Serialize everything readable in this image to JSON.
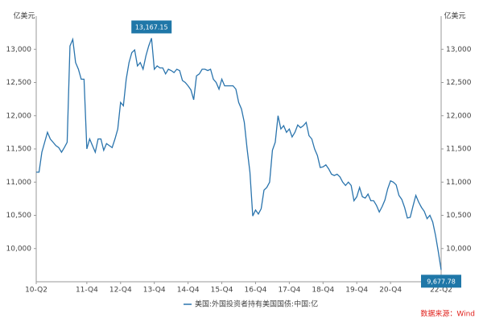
{
  "chart_data": {
    "type": "line",
    "y_label": "亿美元",
    "y2_label": "亿美元",
    "categories": [
      "10-Q2",
      null,
      null,
      null,
      null,
      null,
      null,
      null,
      null,
      null,
      null,
      null,
      null,
      null,
      null,
      null,
      null,
      null,
      "11-Q4",
      null,
      null,
      null,
      null,
      null,
      null,
      null,
      null,
      null,
      null,
      null,
      "12-Q4",
      null,
      null,
      null,
      null,
      null,
      null,
      null,
      null,
      null,
      null,
      null,
      "13-Q4",
      null,
      null,
      null,
      null,
      null,
      null,
      null,
      null,
      null,
      null,
      null,
      "14-Q4",
      null,
      null,
      null,
      null,
      null,
      null,
      null,
      null,
      null,
      null,
      null,
      "15-Q4",
      null,
      null,
      null,
      null,
      null,
      null,
      null,
      null,
      null,
      null,
      null,
      "16-Q4",
      null,
      null,
      null,
      null,
      null,
      null,
      null,
      null,
      null,
      null,
      null,
      "17-Q4",
      null,
      null,
      null,
      null,
      null,
      null,
      null,
      null,
      null,
      null,
      null,
      "18-Q4",
      null,
      null,
      null,
      null,
      null,
      null,
      null,
      null,
      null,
      null,
      null,
      "19-Q4",
      null,
      null,
      null,
      null,
      null,
      null,
      null,
      null,
      null,
      null,
      null,
      "20-Q4",
      null,
      null,
      null,
      null,
      null,
      null,
      null,
      null,
      null,
      null,
      null,
      null,
      null,
      null,
      null,
      null,
      null,
      "22-Q2"
    ],
    "series": [
      {
        "name": "美国:外国投资者持有美国国债:中国:亿",
        "color": "#2a74ad",
        "values": [
          11150,
          11150,
          11450,
          11600,
          11750,
          11650,
          11600,
          11550,
          11520,
          11450,
          11520,
          11600,
          13050,
          13150,
          12800,
          12700,
          12550,
          12550,
          11500,
          11650,
          11550,
          11450,
          11650,
          11650,
          11480,
          11580,
          11550,
          11520,
          11650,
          11800,
          12200,
          12150,
          12550,
          12800,
          12950,
          12990,
          12750,
          12800,
          12700,
          12900,
          13050,
          13167.15,
          12700,
          12750,
          12720,
          12720,
          12630,
          12700,
          12680,
          12650,
          12700,
          12680,
          12530,
          12500,
          12450,
          12390,
          12240,
          12600,
          12630,
          12700,
          12700,
          12680,
          12700,
          12550,
          12500,
          12400,
          12550,
          12450,
          12450,
          12450,
          12450,
          12400,
          12200,
          12100,
          11900,
          11500,
          11150,
          10490,
          10580,
          10520,
          10600,
          10880,
          10920,
          11000,
          11480,
          11600,
          12000,
          11800,
          11850,
          11750,
          11800,
          11680,
          11750,
          11860,
          11820,
          11850,
          11900,
          11700,
          11650,
          11500,
          11400,
          11220,
          11230,
          11260,
          11200,
          11120,
          11100,
          11120,
          11080,
          11000,
          10950,
          11000,
          10950,
          10720,
          10780,
          10920,
          10780,
          10760,
          10820,
          10720,
          10720,
          10650,
          10550,
          10630,
          10730,
          10900,
          11020,
          11000,
          10960,
          10800,
          10740,
          10620,
          10460,
          10470,
          10640,
          10800,
          10700,
          10620,
          10560,
          10450,
          10500,
          10400,
          10200,
          9950,
          9677.78
        ],
        "value_labels": [
          null,
          null,
          null,
          null,
          null,
          null,
          null,
          null,
          null,
          null,
          null,
          null,
          null,
          null,
          null,
          null,
          null,
          null,
          null,
          null,
          null,
          null,
          null,
          null,
          null,
          null,
          null,
          null,
          null,
          null,
          null,
          null,
          null,
          null,
          null,
          null,
          null,
          null,
          null,
          null,
          null,
          "13,167.15",
          null,
          null,
          null,
          null,
          null,
          null,
          null,
          null,
          null,
          null,
          null,
          null,
          null,
          null,
          null,
          null,
          null,
          null,
          null,
          null,
          null,
          null,
          null,
          null,
          null,
          null,
          null,
          null,
          null,
          null,
          null,
          null,
          null,
          null,
          null,
          null,
          null,
          null,
          null,
          null,
          null,
          null,
          null,
          null,
          null,
          null,
          null,
          null,
          null,
          null,
          null,
          null,
          null,
          null,
          null,
          null,
          null,
          null,
          null,
          null,
          null,
          null,
          null,
          null,
          null,
          null,
          null,
          null,
          null,
          null,
          null,
          null,
          null,
          null,
          null,
          null,
          null,
          null,
          null,
          null,
          null,
          null,
          null,
          null,
          null,
          null,
          null,
          null,
          null,
          null,
          null,
          null,
          null,
          null,
          null,
          null,
          null,
          null,
          null,
          null,
          null,
          null,
          "9,677.78"
        ],
        "label_color": "#1f77a8"
      }
    ],
    "ylim": [
      9500,
      13500
    ],
    "yticks": [
      {
        "value": 10000,
        "label": "10,000"
      },
      {
        "value": 10500,
        "label": "10,500"
      },
      {
        "value": 11000,
        "label": "11,000"
      },
      {
        "value": 11500,
        "label": "11,500"
      },
      {
        "value": 12000,
        "label": "12,000"
      },
      {
        "value": 12500,
        "label": "12,500"
      },
      {
        "value": 13000,
        "label": "13,000"
      }
    ],
    "y2lim": [
      9500,
      13500
    ],
    "y2ticks": [
      {
        "value": 10000,
        "label": "10,000"
      },
      {
        "value": 10500,
        "label": "10,500"
      },
      {
        "value": 11000,
        "label": "11,000"
      },
      {
        "value": 11500,
        "label": "11,500"
      },
      {
        "value": 12000,
        "label": "12,000"
      },
      {
        "value": 12500,
        "label": "12,500"
      },
      {
        "value": 13000,
        "label": "13,000"
      }
    ],
    "grid": false,
    "source": "数据来源：Wind",
    "source_color": "#e0201b"
  }
}
